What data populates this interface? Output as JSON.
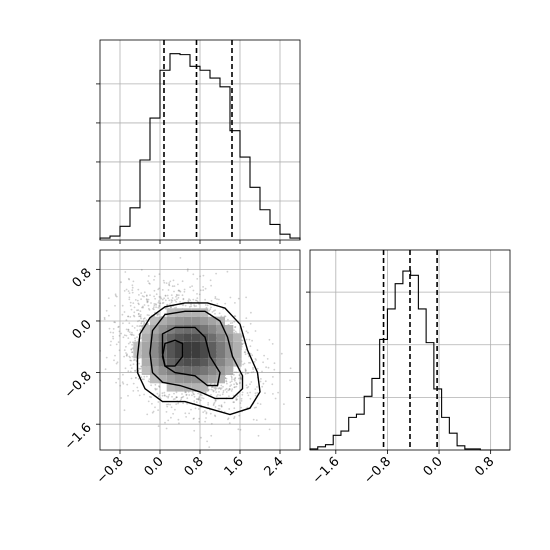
{
  "chart_data": [
    {
      "panel": "top-left",
      "type": "histogram",
      "x_bin_edges": [
        -1.2,
        -1.0,
        -0.8,
        -0.6,
        -0.4,
        -0.2,
        0.0,
        0.2,
        0.4,
        0.6,
        0.8,
        1.0,
        1.2,
        1.4,
        1.6,
        1.8,
        2.0,
        2.2,
        2.4,
        2.6,
        2.8
      ],
      "counts": [
        2,
        4,
        14,
        33,
        82,
        125,
        174,
        191,
        190,
        178,
        174,
        166,
        157,
        112,
        85,
        54,
        31,
        16,
        6,
        2
      ],
      "ylim": [
        0,
        205
      ],
      "xlim": [
        -1.2,
        2.8
      ],
      "yticks": [
        40,
        80,
        120,
        160
      ],
      "quantiles": [
        0.08,
        0.73,
        1.44
      ],
      "grid": true
    },
    {
      "panel": "bottom-right",
      "type": "histogram",
      "x_bin_edges": [
        -2.0,
        -1.88,
        -1.76,
        -1.64,
        -1.52,
        -1.4,
        -1.28,
        -1.16,
        -1.04,
        -0.92,
        -0.8,
        -0.68,
        -0.56,
        -0.44,
        -0.32,
        -0.2,
        -0.08,
        0.04,
        0.16,
        0.28,
        0.4,
        0.52,
        0.64
      ],
      "counts": [
        1,
        3,
        5,
        14,
        18,
        31,
        34,
        51,
        68,
        105,
        134,
        158,
        170,
        166,
        134,
        102,
        58,
        31,
        16,
        4,
        1,
        1
      ],
      "ylim": [
        0,
        190
      ],
      "xlim": [
        -2.0,
        1.1
      ],
      "xticks": [
        -1.6,
        -0.8,
        0.0,
        0.8
      ],
      "xtick_labels": [
        "−1.6",
        "−0.8",
        "0.0",
        "0.8"
      ],
      "yticks": [
        50,
        100,
        150
      ],
      "quantiles": [
        -0.86,
        -0.45,
        -0.03
      ],
      "grid": true
    },
    {
      "panel": "bottom-left",
      "type": "scatter-density-contour",
      "xlim": [
        -1.2,
        2.8
      ],
      "ylim": [
        -2.0,
        1.1
      ],
      "xticks": [
        -0.8,
        0.0,
        0.8,
        1.6,
        2.4
      ],
      "xtick_labels": [
        "−0.8",
        "0.0",
        "0.8",
        "1.6",
        "2.4"
      ],
      "yticks": [
        -1.6,
        -0.8,
        0.0,
        0.8
      ],
      "ytick_labels": [
        "−1.6",
        "−0.8",
        "0.0",
        "0.8"
      ],
      "density_peak": [
        0.4,
        -0.45
      ],
      "contours": [
        [
          [
            0.05,
            -0.55
          ],
          [
            0.1,
            -0.35
          ],
          [
            0.3,
            -0.3
          ],
          [
            0.45,
            -0.35
          ],
          [
            0.45,
            -0.55
          ],
          [
            0.3,
            -0.7
          ],
          [
            0.1,
            -0.7
          ]
        ],
        [
          [
            0.05,
            -0.5
          ],
          [
            0.05,
            -0.2
          ],
          [
            0.3,
            -0.1
          ],
          [
            0.7,
            -0.1
          ],
          [
            0.9,
            -0.25
          ],
          [
            1.0,
            -0.55
          ],
          [
            1.2,
            -0.8
          ],
          [
            1.15,
            -1.0
          ],
          [
            0.95,
            -1.0
          ],
          [
            0.7,
            -0.85
          ],
          [
            0.3,
            -0.8
          ],
          [
            0.1,
            -0.7
          ]
        ],
        [
          [
            -0.2,
            -0.5
          ],
          [
            -0.15,
            -0.15
          ],
          [
            0.1,
            0.1
          ],
          [
            0.5,
            0.15
          ],
          [
            0.9,
            0.15
          ],
          [
            1.2,
            0.0
          ],
          [
            1.35,
            -0.25
          ],
          [
            1.45,
            -0.55
          ],
          [
            1.65,
            -0.85
          ],
          [
            1.65,
            -1.05
          ],
          [
            1.45,
            -1.2
          ],
          [
            1.1,
            -1.2
          ],
          [
            0.8,
            -1.1
          ],
          [
            0.4,
            -1.0
          ],
          [
            0.05,
            -0.95
          ],
          [
            -0.15,
            -0.8
          ]
        ],
        [
          [
            -0.45,
            -0.55
          ],
          [
            -0.4,
            -0.2
          ],
          [
            -0.2,
            0.05
          ],
          [
            0.1,
            0.22
          ],
          [
            0.5,
            0.28
          ],
          [
            0.95,
            0.28
          ],
          [
            1.3,
            0.2
          ],
          [
            1.6,
            -0.05
          ],
          [
            1.75,
            -0.45
          ],
          [
            1.95,
            -0.8
          ],
          [
            2.0,
            -1.1
          ],
          [
            1.8,
            -1.35
          ],
          [
            1.4,
            -1.45
          ],
          [
            0.95,
            -1.35
          ],
          [
            0.5,
            -1.25
          ],
          [
            0.05,
            -1.25
          ],
          [
            -0.3,
            -1.05
          ],
          [
            -0.45,
            -0.8
          ]
        ]
      ],
      "grid": true
    }
  ]
}
